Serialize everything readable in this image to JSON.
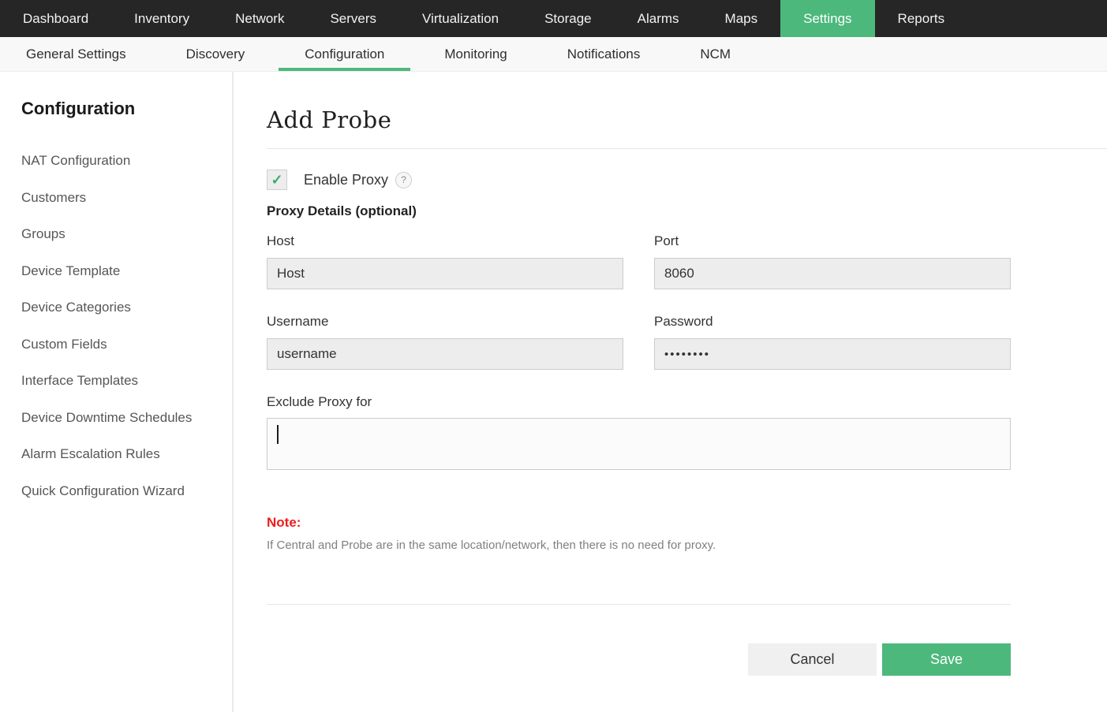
{
  "nav": {
    "items": [
      "Dashboard",
      "Inventory",
      "Network",
      "Servers",
      "Virtualization",
      "Storage",
      "Alarms",
      "Maps",
      "Settings",
      "Reports"
    ],
    "active": "Settings"
  },
  "subnav": {
    "items": [
      "General Settings",
      "Discovery",
      "Configuration",
      "Monitoring",
      "Notifications",
      "NCM"
    ],
    "active": "Configuration"
  },
  "sidebar": {
    "title": "Configuration",
    "items": [
      "NAT Configuration",
      "Customers",
      "Groups",
      "Device Template",
      "Device Categories",
      "Custom Fields",
      "Interface Templates",
      "Device Downtime Schedules",
      "Alarm Escalation Rules",
      "Quick Configuration Wizard"
    ]
  },
  "icons": {
    "checkmark": "✓",
    "help": "?"
  },
  "main": {
    "title": "Add Probe",
    "enable_proxy": {
      "label": "Enable Proxy",
      "checked": true
    },
    "section_title": "Proxy Details (optional)",
    "fields": {
      "host": {
        "label": "Host",
        "value": "Host"
      },
      "port": {
        "label": "Port",
        "value": "8060"
      },
      "username": {
        "label": "Username",
        "value": "username"
      },
      "password": {
        "label": "Password",
        "value": "••••••••"
      },
      "exclude": {
        "label": "Exclude Proxy for",
        "value": ""
      }
    },
    "note": {
      "title": "Note:",
      "text": "If Central and Probe are in the same location/network, then there is no need for proxy."
    },
    "buttons": {
      "cancel": "Cancel",
      "save": "Save"
    }
  },
  "colors": {
    "accent_green": "#4db87c",
    "topnav_bg": "#262626",
    "note_red": "#ee1c1c",
    "input_bg": "#ededed"
  }
}
